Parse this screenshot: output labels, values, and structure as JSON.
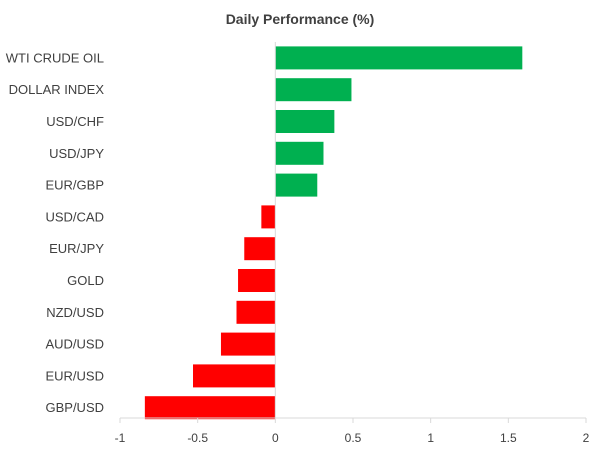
{
  "chart_data": {
    "type": "bar",
    "orientation": "horizontal",
    "title": "Daily Performance (%)",
    "categories": [
      "WTI CRUDE OIL",
      "DOLLAR INDEX",
      "USD/CHF",
      "USD/JPY",
      "EUR/GBP",
      "USD/CAD",
      "EUR/JPY",
      "GOLD",
      "NZD/USD",
      "AUD/USD",
      "EUR/USD",
      "GBP/USD"
    ],
    "values": [
      1.59,
      0.49,
      0.38,
      0.31,
      0.27,
      -0.09,
      -0.2,
      -0.24,
      -0.25,
      -0.35,
      -0.53,
      -0.84
    ],
    "xlim": [
      -1,
      2
    ],
    "xticks": [
      "-1",
      "-0.5",
      "0",
      "0.5",
      "1",
      "1.5",
      "2"
    ],
    "grid": false,
    "colors": {
      "positive": "#00b050",
      "negative": "#ff0000",
      "axis": "#d9d9d9",
      "text": "#404040"
    }
  }
}
